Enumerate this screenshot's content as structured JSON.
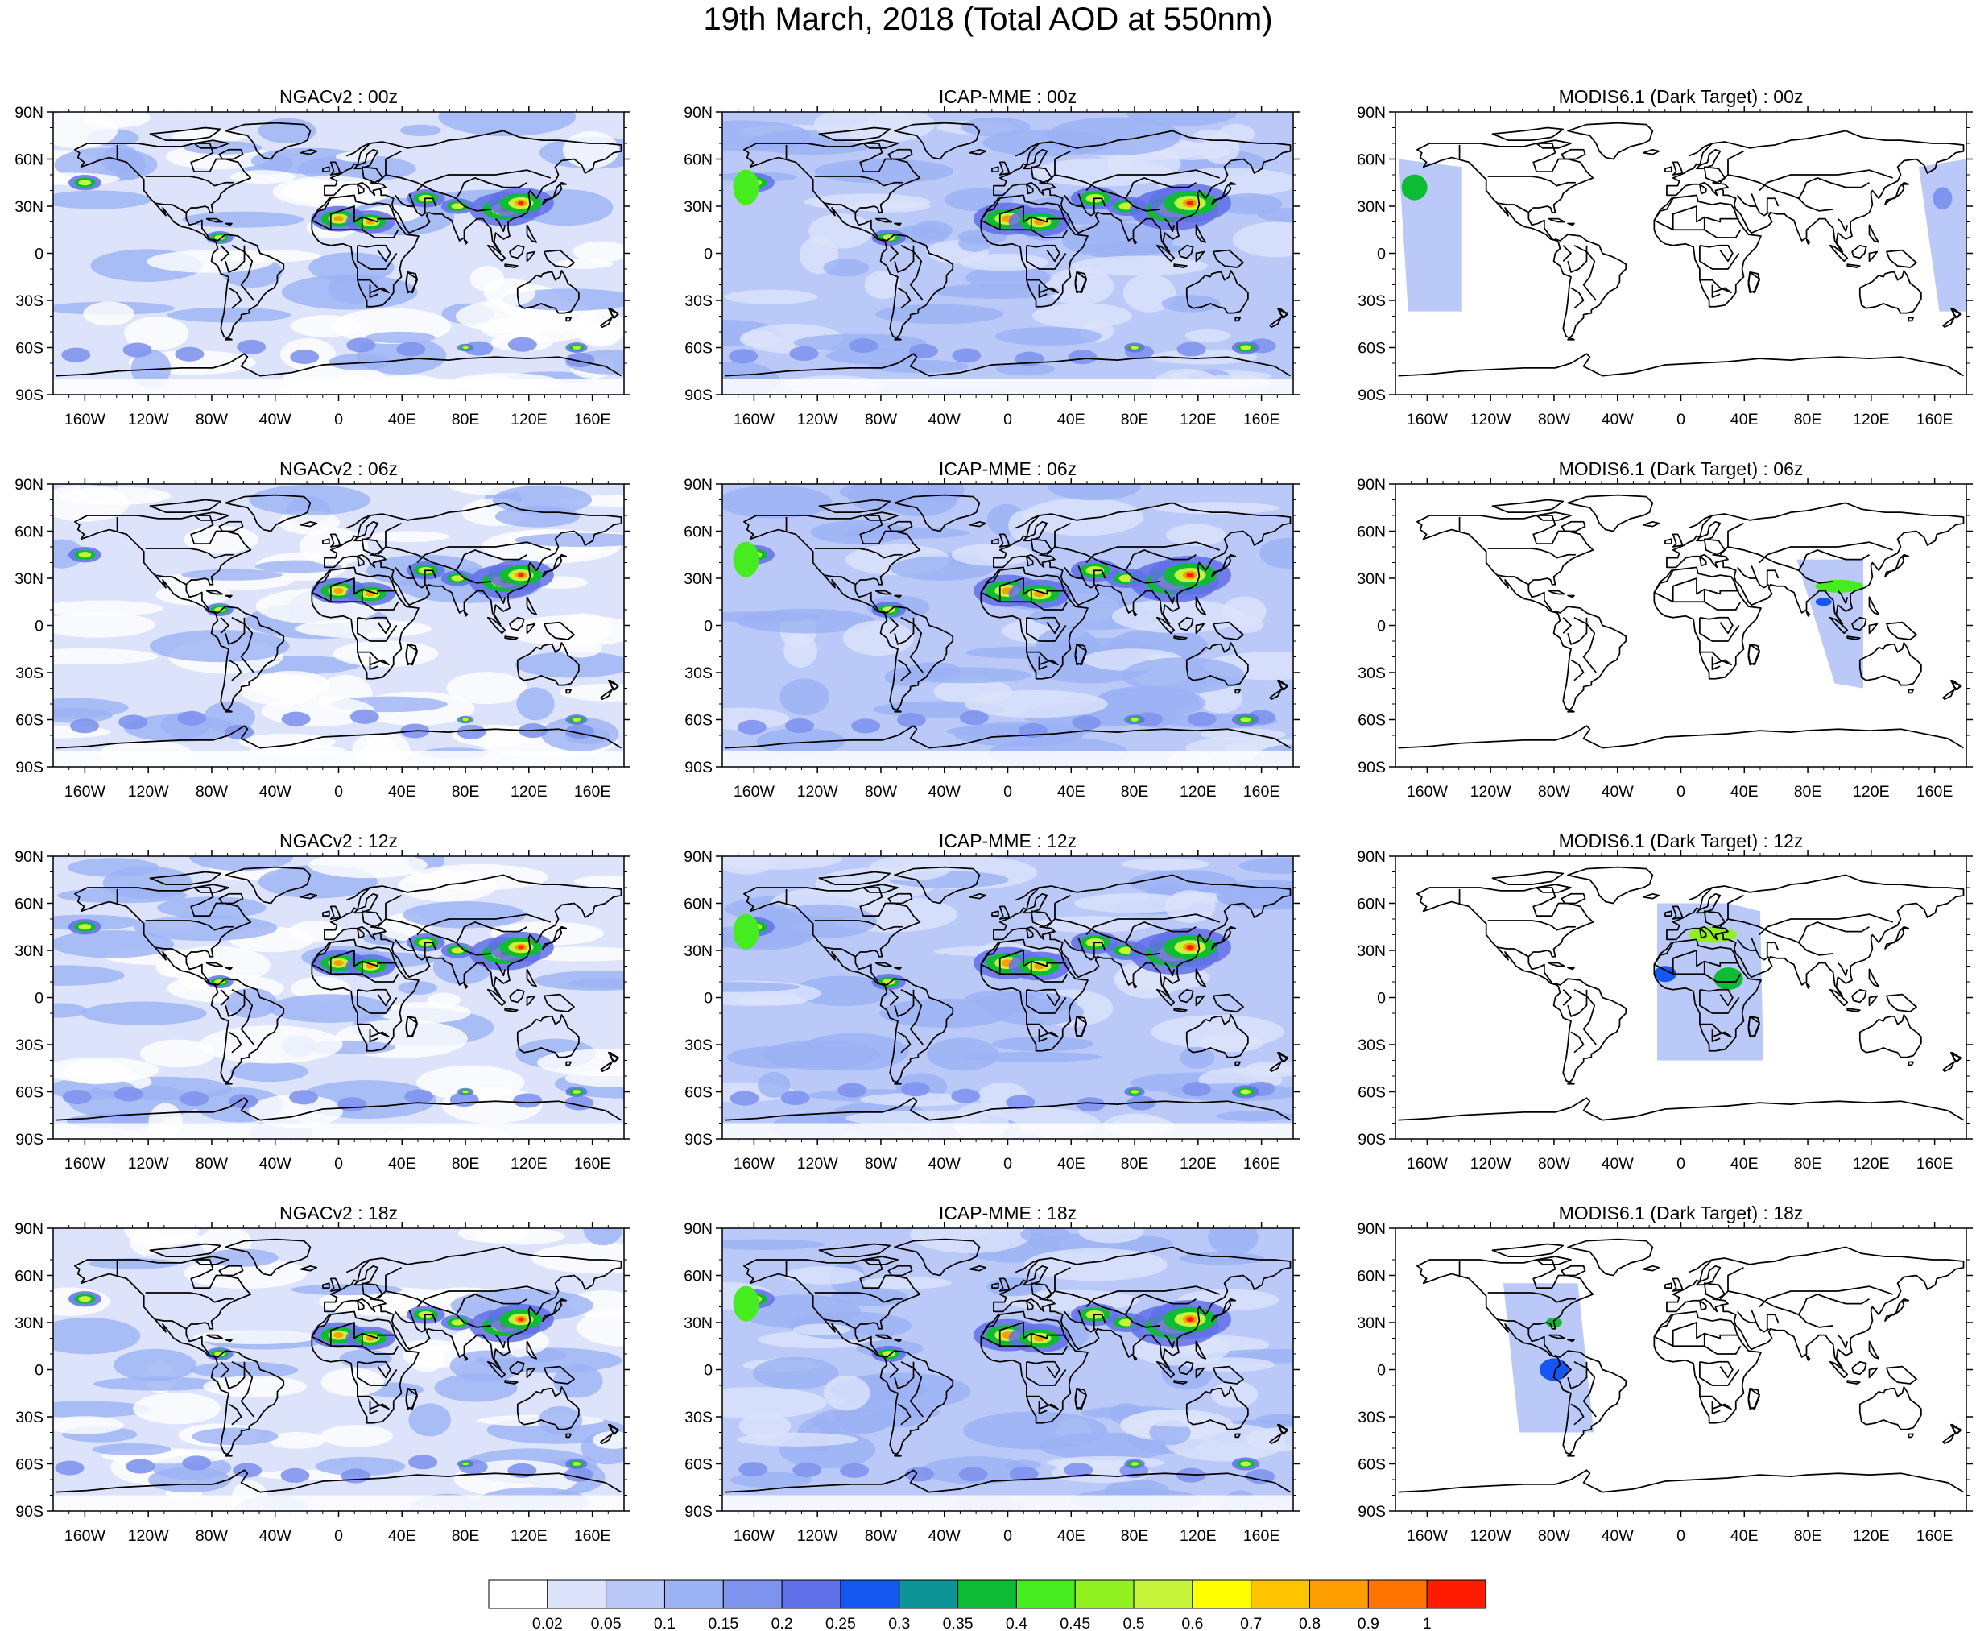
{
  "title": "19th March, 2018 (Total AOD at 550nm)",
  "columns": [
    "NGACv2",
    "ICAP-MME",
    "MODIS6.1 (Dark Target)"
  ],
  "times": [
    "00z",
    "06z",
    "12z",
    "18z"
  ],
  "panel_titles": [
    [
      "NGACv2 : 00z",
      "ICAP-MME : 00z",
      "MODIS6.1 (Dark Target) : 00z"
    ],
    [
      "NGACv2 : 06z",
      "ICAP-MME : 06z",
      "MODIS6.1 (Dark Target) : 06z"
    ],
    [
      "NGACv2 : 12z",
      "ICAP-MME : 12z",
      "MODIS6.1 (Dark Target) : 12z"
    ],
    [
      "NGACv2 : 18z",
      "ICAP-MME : 18z",
      "MODIS6.1 (Dark Target) : 18z"
    ]
  ],
  "lat_ticks": [
    "90N",
    "60N",
    "30N",
    "0",
    "30S",
    "60S",
    "90S"
  ],
  "lon_ticks": [
    "160W",
    "120W",
    "80W",
    "40W",
    "0",
    "40E",
    "80E",
    "120E",
    "160E"
  ],
  "lon_tick_values": [
    -160,
    -120,
    -80,
    -40,
    0,
    40,
    80,
    120,
    160
  ],
  "lat_tick_values": [
    90,
    60,
    30,
    0,
    -30,
    -60,
    -90
  ],
  "colorbar": {
    "labels": [
      "0.02",
      "0.05",
      "0.1",
      "0.15",
      "0.2",
      "0.25",
      "0.3",
      "0.35",
      "0.4",
      "0.45",
      "0.5",
      "0.6",
      "0.7",
      "0.8",
      "0.9",
      "1"
    ],
    "colors": [
      "#ffffff",
      "#dce3fb",
      "#bac9f8",
      "#9bb2f4",
      "#7f94ee",
      "#6070e8",
      "#1457f0",
      "#0e9496",
      "#0dbb34",
      "#46ec20",
      "#90f020",
      "#c6f438",
      "#ffff00",
      "#ffc400",
      "#ff9e00",
      "#ff7400",
      "#ff1c00"
    ]
  },
  "palette": {
    "ocean_light": "#dce3fb",
    "ocean_mid": "#bac9f8",
    "ocean_dark": "#9bb2f4",
    "coast": "#000000"
  }
}
